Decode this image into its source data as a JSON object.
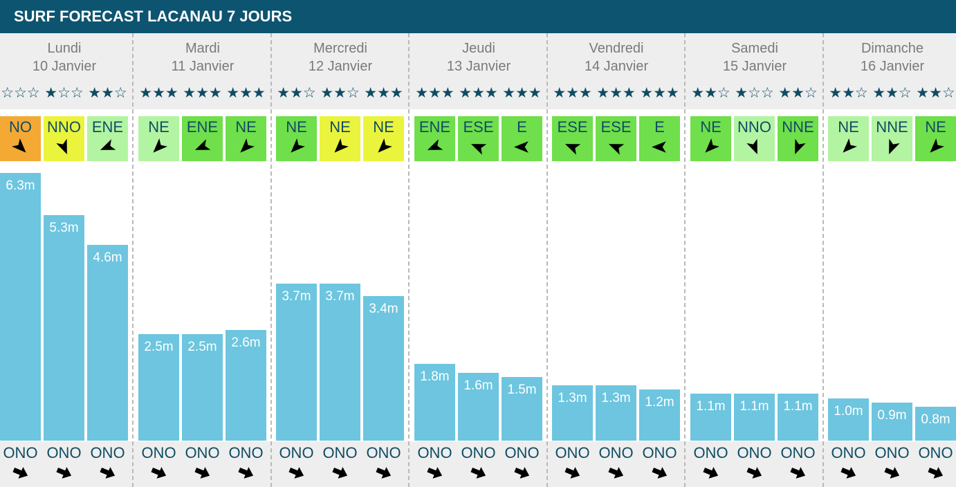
{
  "colors": {
    "header_bg": "#0d5470",
    "accent": "#0f4c63",
    "day_text": "#7a7a7a",
    "bar": "#6dc5df",
    "band_bg": "#eeeeee",
    "separator": "#b9b9b9",
    "wind_scale": [
      "#f4a934",
      "#ebf43c",
      "#b2f4a1",
      "#6fdf4b"
    ]
  },
  "icons": {
    "star_filled": "star-filled-icon",
    "star_empty": "star-empty-icon",
    "wind_arrow": "wind-arrow-icon",
    "swell_arrow": "swell-arrow-icon"
  },
  "chart_data": {
    "type": "bar",
    "title": "SURF FORECAST LACANAU 7 JOURS",
    "ylim": [
      0,
      6.3
    ],
    "grid": false,
    "days": [
      {
        "name": "Lundi",
        "date": "10 Janvier",
        "slots": [
          {
            "stars": 0,
            "wind": "NO",
            "wind_rating": 0,
            "height": 6.3,
            "label": "6.3m",
            "swell": "ONO"
          },
          {
            "stars": 1,
            "wind": "NNO",
            "wind_rating": 1,
            "height": 5.3,
            "label": "5.3m",
            "swell": "ONO"
          },
          {
            "stars": 2,
            "wind": "ENE",
            "wind_rating": 2,
            "height": 4.6,
            "label": "4.6m",
            "swell": "ONO"
          }
        ]
      },
      {
        "name": "Mardi",
        "date": "11 Janvier",
        "slots": [
          {
            "stars": 3,
            "wind": "NE",
            "wind_rating": 2,
            "height": 2.5,
            "label": "2.5m",
            "swell": "ONO"
          },
          {
            "stars": 3,
            "wind": "ENE",
            "wind_rating": 3,
            "height": 2.5,
            "label": "2.5m",
            "swell": "ONO"
          },
          {
            "stars": 3,
            "wind": "NE",
            "wind_rating": 3,
            "height": 2.6,
            "label": "2.6m",
            "swell": "ONO"
          }
        ]
      },
      {
        "name": "Mercredi",
        "date": "12 Janvier",
        "slots": [
          {
            "stars": 2,
            "wind": "NE",
            "wind_rating": 3,
            "height": 3.7,
            "label": "3.7m",
            "swell": "ONO"
          },
          {
            "stars": 2,
            "wind": "NE",
            "wind_rating": 1,
            "height": 3.7,
            "label": "3.7m",
            "swell": "ONO"
          },
          {
            "stars": 3,
            "wind": "NE",
            "wind_rating": 1,
            "height": 3.4,
            "label": "3.4m",
            "swell": "ONO"
          }
        ]
      },
      {
        "name": "Jeudi",
        "date": "13 Janvier",
        "slots": [
          {
            "stars": 3,
            "wind": "ENE",
            "wind_rating": 3,
            "height": 1.8,
            "label": "1.8m",
            "swell": "ONO"
          },
          {
            "stars": 3,
            "wind": "ESE",
            "wind_rating": 3,
            "height": 1.6,
            "label": "1.6m",
            "swell": "ONO"
          },
          {
            "stars": 3,
            "wind": "E",
            "wind_rating": 3,
            "height": 1.5,
            "label": "1.5m",
            "swell": "ONO"
          }
        ]
      },
      {
        "name": "Vendredi",
        "date": "14 Janvier",
        "slots": [
          {
            "stars": 3,
            "wind": "ESE",
            "wind_rating": 3,
            "height": 1.3,
            "label": "1.3m",
            "swell": "ONO"
          },
          {
            "stars": 3,
            "wind": "ESE",
            "wind_rating": 3,
            "height": 1.3,
            "label": "1.3m",
            "swell": "ONO"
          },
          {
            "stars": 3,
            "wind": "E",
            "wind_rating": 3,
            "height": 1.2,
            "label": "1.2m",
            "swell": "ONO"
          }
        ]
      },
      {
        "name": "Samedi",
        "date": "15 Janvier",
        "slots": [
          {
            "stars": 2,
            "wind": "NE",
            "wind_rating": 3,
            "height": 1.1,
            "label": "1.1m",
            "swell": "ONO"
          },
          {
            "stars": 1,
            "wind": "NNO",
            "wind_rating": 2,
            "height": 1.1,
            "label": "1.1m",
            "swell": "ONO"
          },
          {
            "stars": 2,
            "wind": "NNE",
            "wind_rating": 3,
            "height": 1.1,
            "label": "1.1m",
            "swell": "ONO"
          }
        ]
      },
      {
        "name": "Dimanche",
        "date": "16 Janvier",
        "slots": [
          {
            "stars": 2,
            "wind": "NE",
            "wind_rating": 2,
            "height": 1.0,
            "label": "1.0m",
            "swell": "ONO"
          },
          {
            "stars": 2,
            "wind": "NNE",
            "wind_rating": 2,
            "height": 0.9,
            "label": "0.9m",
            "swell": "ONO"
          },
          {
            "stars": 2,
            "wind": "NE",
            "wind_rating": 3,
            "height": 0.8,
            "label": "0.8m",
            "swell": "ONO"
          }
        ]
      }
    ]
  }
}
